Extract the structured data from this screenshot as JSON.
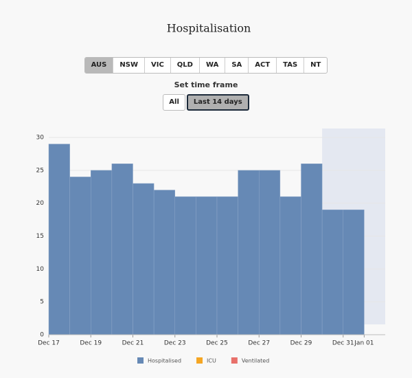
{
  "title": "Hospitalisation",
  "regions": [
    "AUS",
    "NSW",
    "VIC",
    "QLD",
    "WA",
    "SA",
    "ACT",
    "TAS",
    "NT"
  ],
  "selected_region": 0,
  "time_frame_label": "Set time frame",
  "time_frames": [
    "All",
    "Last 14 days"
  ],
  "selected_time_frame": 1,
  "chart_data": {
    "type": "bar",
    "categories": [
      "Dec 17",
      null,
      "Dec 19",
      null,
      "Dec 21",
      null,
      "Dec 23",
      null,
      "Dec 25",
      null,
      "Dec 27",
      null,
      "Dec 29",
      null,
      "Dec 31"
    ],
    "end_label": "Jan 01",
    "series": [
      {
        "name": "Hospitalised",
        "color": "#6689b5",
        "values": [
          29,
          24,
          25,
          26,
          23,
          22,
          21,
          21,
          21,
          25,
          25,
          21,
          26,
          19,
          19
        ]
      },
      {
        "name": "ICU",
        "color": "#f5a623"
      },
      {
        "name": "Ventilated",
        "color": "#e8706a"
      }
    ],
    "ylim": [
      0,
      30
    ],
    "yticks": [
      0,
      5,
      10,
      15,
      20,
      25,
      30
    ],
    "grid": true
  }
}
